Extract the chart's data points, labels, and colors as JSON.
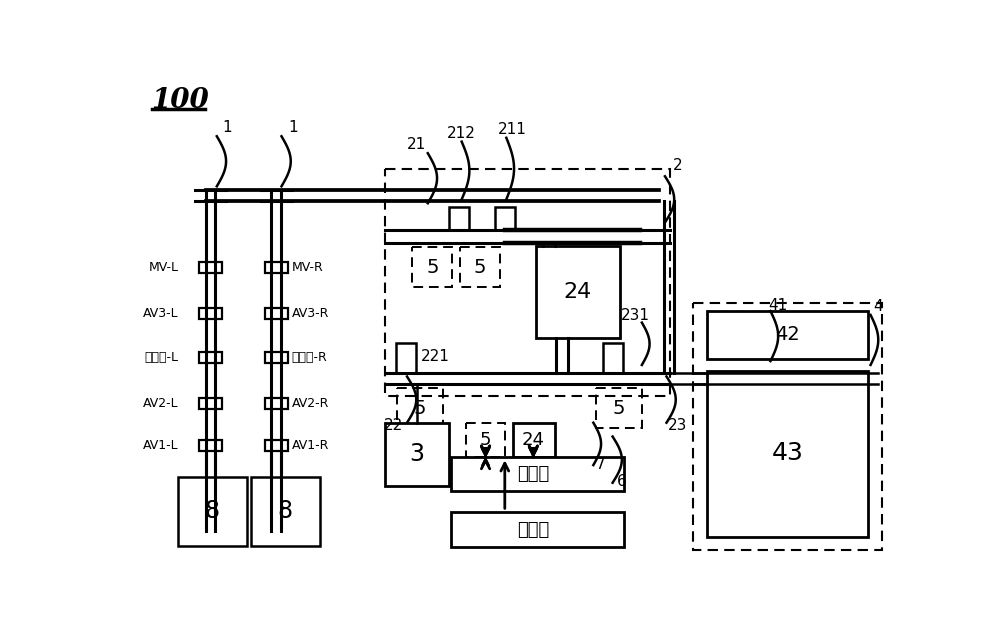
{
  "title": "100",
  "bg_color": "#ffffff",
  "fg_color": "#000000",
  "labels": {
    "mv_l": "MV-L",
    "mv_r": "MV-R",
    "av3_l": "AV3-L",
    "av3_r": "AV3-R",
    "wy_l": "稳压器-L",
    "wy_r": "稳压器-R",
    "av2_l": "AV2-L",
    "av2_r": "AV2-R",
    "av1_l": "AV1-L",
    "av1_r": "AV1-R",
    "n21": "21",
    "n1a": "1",
    "n1b": "1",
    "n212": "212",
    "n211": "211",
    "n2": "2",
    "n22": "22",
    "n221": "221",
    "n24": "24",
    "n231": "231",
    "n23": "23",
    "n4": "4",
    "n41": "41",
    "n3": "3",
    "n5": "5",
    "n7": "7",
    "n6": "6",
    "processor": "处理器",
    "memory": "存储器",
    "n8": "8",
    "n42": "42",
    "n43": "43",
    "n24b": "24"
  }
}
